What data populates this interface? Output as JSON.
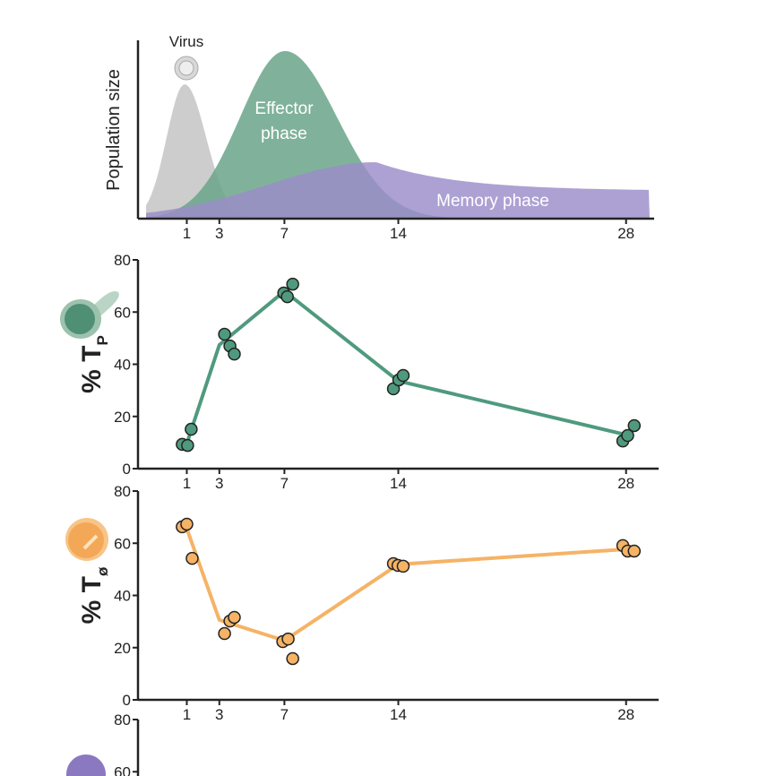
{
  "chart_data": [
    {
      "type": "area",
      "ylabel": "Population size",
      "series": [
        {
          "name": "Virus",
          "color": "#c4c4c4"
        },
        {
          "name": "Effector phase",
          "color": "#6aa58a"
        },
        {
          "name": "Memory phase",
          "color": "#9b8cc9"
        }
      ],
      "xlim": [
        -2,
        30
      ],
      "xticks": [
        1,
        3,
        7,
        14,
        28
      ]
    },
    {
      "type": "line",
      "ylabel": "% T",
      "ylabel_sub": "P",
      "color": "#4f9a7e",
      "x": [
        1,
        3,
        7,
        14,
        28
      ],
      "values": [
        9.6,
        47.4,
        68,
        33.6,
        13
      ],
      "points": {
        "x": [
          0.72,
          1.05,
          1.27,
          3.32,
          3.65,
          3.92,
          6.96,
          7.18,
          7.51,
          13.7,
          14.03,
          14.3,
          27.8,
          28.1,
          28.5
        ],
        "y": [
          9.3,
          8.9,
          15.1,
          51.5,
          47.0,
          43.9,
          67.3,
          65.9,
          70.7,
          30.6,
          34.0,
          35.7,
          10.6,
          12.7,
          16.5
        ]
      },
      "xlim": [
        -2,
        30
      ],
      "xticks": [
        1,
        3,
        7,
        14,
        28
      ],
      "ylim": [
        0,
        80
      ],
      "yticks": [
        0,
        20,
        40,
        60,
        80
      ]
    },
    {
      "type": "line",
      "ylabel": "% T",
      "ylabel_sub": "ø",
      "color": "#f5b366",
      "x": [
        1,
        3,
        7,
        14,
        28
      ],
      "values": [
        65.6,
        30.6,
        22.7,
        51.9,
        57.7
      ],
      "points": {
        "x": [
          0.72,
          1.0,
          1.33,
          3.32,
          3.65,
          3.92,
          6.9,
          7.23,
          7.51,
          13.7,
          13.98,
          14.3,
          27.8,
          28.1,
          28.5
        ],
        "y": [
          66.3,
          67.3,
          54.2,
          25.4,
          30.2,
          31.6,
          22.3,
          23.3,
          15.8,
          52.2,
          51.5,
          51.2,
          59.1,
          57.0,
          57.0
        ]
      },
      "xlim": [
        -2,
        30
      ],
      "xticks": [
        1,
        3,
        7,
        14,
        28
      ],
      "ylim": [
        0,
        80
      ],
      "yticks": [
        0,
        20,
        40,
        60,
        80
      ]
    },
    {
      "type": "empty",
      "ylim": [
        0,
        80
      ],
      "yticks": [
        60,
        80
      ]
    }
  ]
}
